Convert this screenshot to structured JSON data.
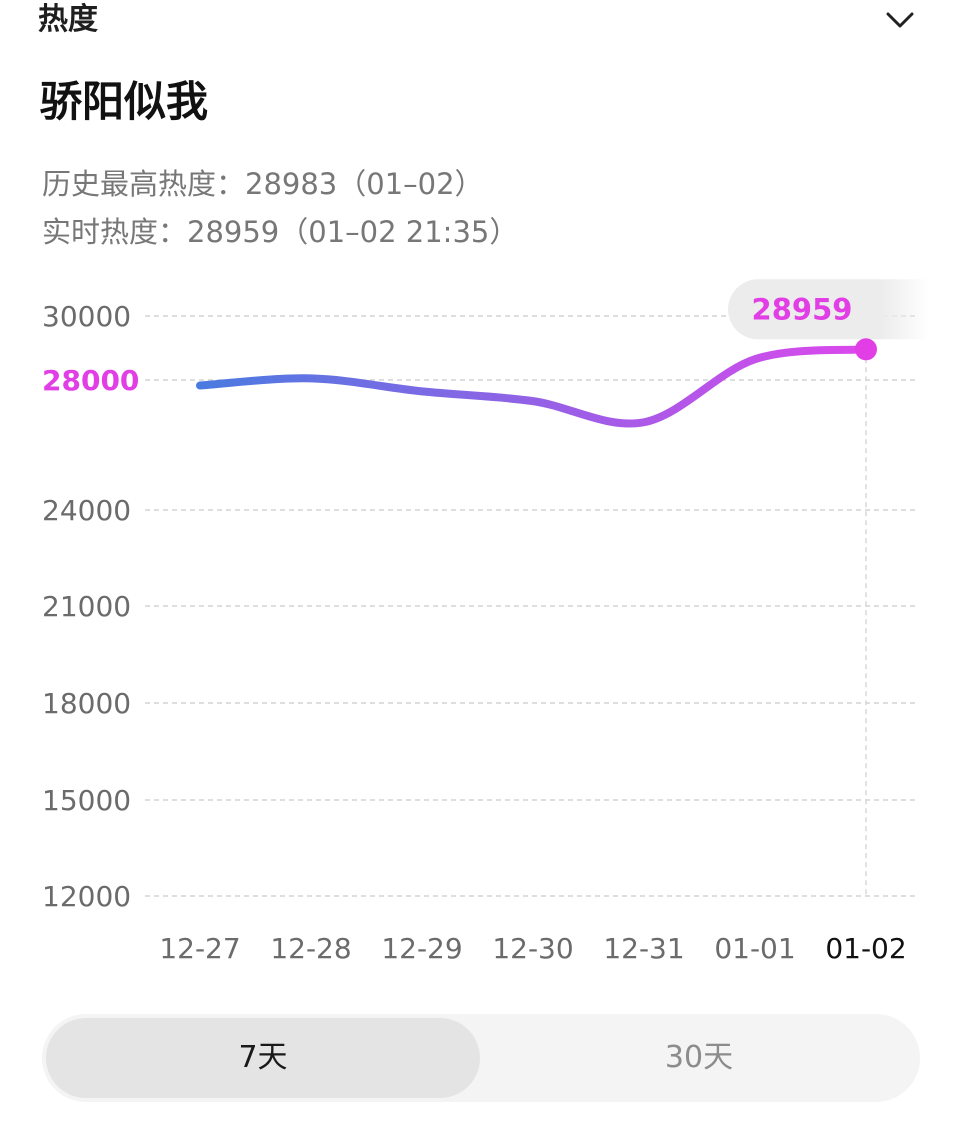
{
  "header": {
    "title": "热度",
    "toggle_icon": "chevron-down-icon"
  },
  "topic": {
    "title": "骄阳似我"
  },
  "stats": {
    "history_high": "历史最高热度：28983（01–02）",
    "realtime": "实时热度：28959（01–02 21:35）"
  },
  "tabs": {
    "option_7": "7天",
    "option_30": "30天",
    "selected": "7天"
  },
  "colors": {
    "accent": "#e23ee6",
    "line_start": "#4a7be0",
    "line_end": "#dc48ec",
    "grid": "#d4d4d4"
  },
  "chart_data": {
    "type": "line",
    "title": "",
    "xlabel": "",
    "ylabel": "",
    "categories": [
      "12-27",
      "12-28",
      "12-29",
      "12-30",
      "12-31",
      "01-01",
      "01-02"
    ],
    "series": [
      {
        "values": [
          27830,
          28050,
          27650,
          27350,
          26700,
          28650,
          28959
        ]
      }
    ],
    "y_ticks": [
      30000,
      28000,
      24000,
      21000,
      18000,
      15000,
      12000
    ],
    "highlighted_tick": 28000,
    "ylim": [
      12000,
      30000
    ],
    "callout": {
      "category": "01-02",
      "label": "28959"
    },
    "highlighted_category": "01-02",
    "grid": true,
    "legend": "none"
  }
}
